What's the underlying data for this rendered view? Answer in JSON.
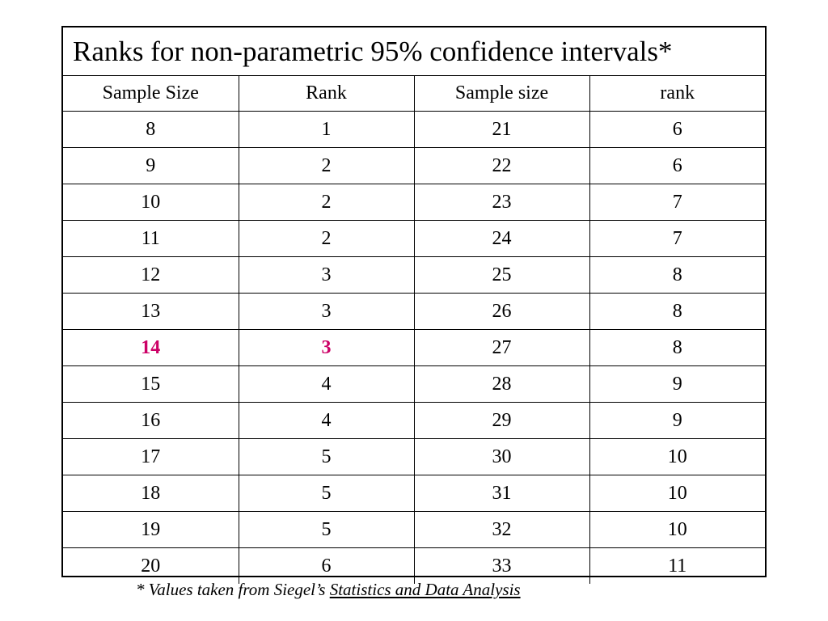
{
  "title": "Ranks for non-parametric 95% confidence intervals*",
  "headers": [
    "Sample Size",
    "Rank",
    "Sample size",
    "rank"
  ],
  "rows": [
    [
      "8",
      "1",
      "21",
      "6"
    ],
    [
      "9",
      "2",
      "22",
      "6"
    ],
    [
      "10",
      "2",
      "23",
      "7"
    ],
    [
      "11",
      "2",
      "24",
      "7"
    ],
    [
      "12",
      "3",
      "25",
      "8"
    ],
    [
      "13",
      "3",
      "26",
      "8"
    ],
    [
      "14",
      "3",
      "27",
      "8"
    ],
    [
      "15",
      "4",
      "28",
      "9"
    ],
    [
      "16",
      "4",
      "29",
      "9"
    ],
    [
      "17",
      "5",
      "30",
      "10"
    ],
    [
      "18",
      "5",
      "31",
      "10"
    ],
    [
      "19",
      "5",
      "32",
      "10"
    ],
    [
      "20",
      "6",
      "33",
      "11"
    ]
  ],
  "highlight": {
    "row_sample_size": "14",
    "color": "#cc0066"
  },
  "footnote": {
    "prefix": "* Values taken from Siegel’s ",
    "source_title": "Statistics and Data Analysis"
  }
}
